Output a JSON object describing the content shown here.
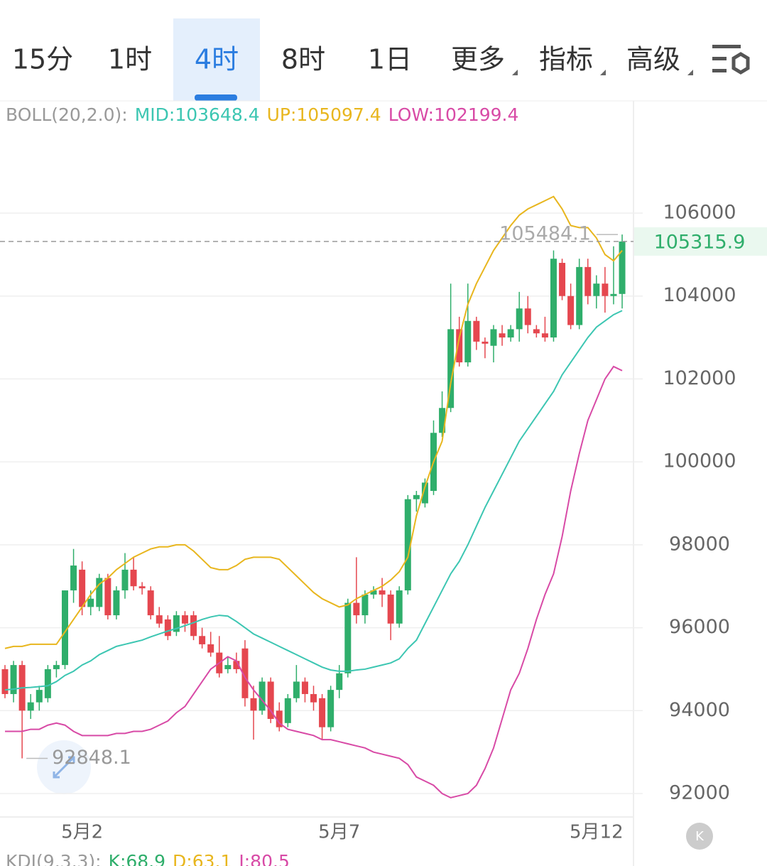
{
  "tabs": [
    "15分",
    "1时",
    "4时",
    "8时",
    "1日",
    "更多",
    "指标",
    "高级"
  ],
  "selected_tab": 2,
  "chart_data": {
    "type": "candlestick",
    "indicator": "BOLL(20,2.0):",
    "categories": [
      null,
      null,
      null,
      null,
      null,
      null,
      null,
      null,
      null,
      "5月2",
      null,
      null,
      null,
      null,
      null,
      null,
      null,
      null,
      null,
      null,
      null,
      null,
      null,
      null,
      null,
      null,
      null,
      null,
      null,
      null,
      null,
      null,
      null,
      null,
      null,
      null,
      null,
      null,
      null,
      "5月7",
      null,
      null,
      null,
      null,
      null,
      null,
      null,
      null,
      null,
      null,
      null,
      null,
      null,
      null,
      null,
      null,
      null,
      null,
      null,
      null,
      null,
      null,
      null,
      null,
      null,
      null,
      null,
      null,
      null,
      "5月12",
      null,
      null,
      null
    ],
    "open": [
      95000,
      94400,
      95100,
      94000,
      94200,
      94300,
      95000,
      95100,
      96900,
      97400,
      96500,
      96500,
      97200,
      96300,
      96900,
      97400,
      97000,
      96900,
      96300,
      96200,
      95900,
      96300,
      96300,
      95800,
      95600,
      95400,
      95000,
      95200,
      95500,
      94300,
      94000,
      94700,
      94000,
      93700,
      94300,
      94700,
      94400,
      94300,
      93600,
      94500,
      94900,
      96600,
      96300,
      96800,
      96900,
      96800,
      96100,
      96900,
      99100,
      99000,
      99300,
      100700,
      101300,
      103200,
      102400,
      103400,
      102900,
      102800,
      103100,
      103000,
      103200,
      103700,
      103200,
      103100,
      103000,
      104800,
      104000,
      103300,
      104700,
      104000,
      104300,
      104000,
      104050
    ],
    "high": [
      95100,
      95200,
      95200,
      94400,
      94600,
      95100,
      95200,
      96900,
      97900,
      97600,
      96900,
      97300,
      97300,
      97000,
      97800,
      97700,
      97100,
      97000,
      96500,
      96300,
      96400,
      96400,
      96400,
      96000,
      95900,
      95800,
      95300,
      95400,
      95700,
      94600,
      94800,
      94800,
      94200,
      94400,
      95100,
      94800,
      94600,
      94400,
      94600,
      95100,
      96700,
      97700,
      96900,
      97000,
      97200,
      96900,
      97000,
      99200,
      99300,
      99600,
      101000,
      101700,
      104300,
      103500,
      104300,
      103500,
      103000,
      103300,
      103300,
      103300,
      104100,
      104000,
      103300,
      103500,
      105100,
      104900,
      104300,
      104900,
      104900,
      104500,
      104700,
      105200,
      105484.1
    ],
    "low": [
      94300,
      94200,
      92848.1,
      93800,
      94000,
      94200,
      94800,
      95000,
      96600,
      96300,
      96300,
      96400,
      96200,
      96200,
      96700,
      96900,
      96800,
      96200,
      96000,
      95700,
      95800,
      95900,
      95700,
      95500,
      95300,
      94800,
      94900,
      94900,
      94100,
      93300,
      93900,
      93700,
      93500,
      93600,
      94200,
      94200,
      94000,
      93300,
      93500,
      94300,
      94800,
      96100,
      96100,
      96700,
      96500,
      95700,
      96000,
      96800,
      98800,
      98900,
      99200,
      100600,
      101200,
      102300,
      102300,
      102700,
      102500,
      102400,
      102800,
      102900,
      102900,
      103100,
      103000,
      102900,
      102900,
      103900,
      103200,
      103200,
      103800,
      103700,
      103600,
      103800,
      103700
    ],
    "close": [
      94400,
      95100,
      94000,
      94200,
      94500,
      95000,
      95100,
      96900,
      97500,
      96500,
      96700,
      97200,
      96300,
      96900,
      97400,
      97000,
      96950,
      96300,
      96100,
      95800,
      96300,
      96100,
      95800,
      95600,
      95400,
      94900,
      95100,
      95000,
      94300,
      94000,
      94700,
      93800,
      93600,
      94300,
      94700,
      94400,
      94200,
      93600,
      94500,
      94900,
      96600,
      96300,
      96800,
      96900,
      96800,
      96100,
      96900,
      99100,
      99200,
      99500,
      100700,
      101300,
      103200,
      102400,
      103400,
      102900,
      102850,
      103200,
      103000,
      103200,
      103700,
      103300,
      103100,
      103000,
      104900,
      104000,
      103300,
      104700,
      104000,
      104300,
      104000,
      104050,
      105315.9
    ],
    "up_color": "#2fae6b",
    "down_color": "#e5474f",
    "series": [
      {
        "name": "MID:103648.4",
        "color": "#3cc6b2",
        "values": [
          94500,
          94520,
          94550,
          94560,
          94580,
          94600,
          94700,
          94850,
          94950,
          95100,
          95200,
          95350,
          95450,
          95550,
          95600,
          95650,
          95700,
          95780,
          95850,
          95920,
          95980,
          96050,
          96120,
          96200,
          96260,
          96300,
          96280,
          96150,
          96000,
          95850,
          95750,
          95650,
          95550,
          95450,
          95350,
          95250,
          95150,
          95050,
          94980,
          94950,
          94950,
          94980,
          95000,
          95050,
          95100,
          95150,
          95250,
          95500,
          95700,
          96100,
          96500,
          96900,
          97300,
          97600,
          98000,
          98450,
          98900,
          99300,
          99700,
          100100,
          100500,
          100800,
          101100,
          101400,
          101700,
          102100,
          102400,
          102700,
          103000,
          103250,
          103400,
          103550,
          103648.4
        ]
      },
      {
        "name": "UP:105097.4",
        "color": "#e8b61e",
        "values": [
          95500,
          95550,
          95550,
          95600,
          95600,
          95600,
          95600,
          95900,
          96200,
          96500,
          96800,
          97050,
          97200,
          97400,
          97550,
          97700,
          97800,
          97900,
          97950,
          97950,
          98000,
          98000,
          97850,
          97650,
          97450,
          97400,
          97400,
          97500,
          97650,
          97700,
          97700,
          97700,
          97650,
          97450,
          97250,
          97050,
          96850,
          96700,
          96600,
          96500,
          96550,
          96700,
          96800,
          96900,
          97000,
          97150,
          97350,
          97700,
          98700,
          99400,
          100000,
          100500,
          101900,
          103000,
          103800,
          104300,
          104700,
          105100,
          105400,
          105700,
          105950,
          106100,
          106200,
          106300,
          106400,
          106100,
          105700,
          105650,
          105650,
          105400,
          105000,
          104850,
          105097.4
        ]
      },
      {
        "name": "LOW:102199.4",
        "color": "#d84aa6",
        "values": [
          93500,
          93500,
          93500,
          93550,
          93550,
          93650,
          93700,
          93650,
          93500,
          93400,
          93400,
          93400,
          93400,
          93450,
          93450,
          93500,
          93500,
          93550,
          93650,
          93750,
          93950,
          94100,
          94400,
          94700,
          95000,
          95150,
          95300,
          95200,
          94800,
          94500,
          94250,
          94000,
          93700,
          93550,
          93500,
          93450,
          93400,
          93300,
          93300,
          93250,
          93200,
          93150,
          93100,
          93000,
          92950,
          92900,
          92850,
          92700,
          92400,
          92300,
          92200,
          92000,
          91900,
          91950,
          92000,
          92200,
          92600,
          93100,
          93800,
          94500,
          94900,
          95500,
          96200,
          96800,
          97300,
          98200,
          99300,
          100200,
          101000,
          101500,
          102000,
          102300,
          102199.4
        ]
      }
    ],
    "ylim": [
      91435,
      108707
    ],
    "yticks": [
      92000,
      94000,
      96000,
      98000,
      100000,
      102000,
      104000,
      106000
    ],
    "grid": true
  },
  "kdj": {
    "name": "KDJ(9,3,3):",
    "k": "K:68.9",
    "d": "D:63.1",
    "j": "J:80.5"
  }
}
